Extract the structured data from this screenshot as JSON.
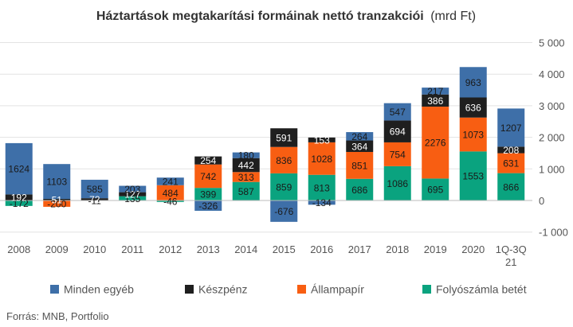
{
  "chart_data": {
    "type": "bar",
    "stacked": true,
    "title": "Háztartások megtakarítási formáinak nettó tranzakciói",
    "title_unit": "(mrd Ft)",
    "source": "Forrás: MNB, Portfolio",
    "categories": [
      "2008",
      "2009",
      "2010",
      "2011",
      "2012",
      "2013",
      "2014",
      "2015",
      "2016",
      "2017",
      "2018",
      "2019",
      "2020",
      "1Q-3Q 21"
    ],
    "ylim": [
      -1000,
      5000
    ],
    "yticks": [
      -1000,
      0,
      1000,
      2000,
      3000,
      4000,
      5000
    ],
    "ytick_labels": [
      "-1 000",
      "0",
      "1 000",
      "2 000",
      "3 000",
      "4 000",
      "5 000"
    ],
    "grid": true,
    "legend_position": "bottom",
    "series": [
      {
        "name": "Folyószámla betét",
        "color": "#0aa37f",
        "values": [
          -172,
          0,
          0,
          135,
          -46,
          399,
          587,
          859,
          813,
          686,
          1086,
          695,
          1553,
          866
        ],
        "labels": [
          "-172",
          "",
          "",
          "135",
          "-46",
          "399",
          "587",
          "859",
          "813",
          "686",
          "1086",
          "695",
          "1553",
          "866"
        ]
      },
      {
        "name": "Állampapír",
        "color": "#f85e12",
        "values": [
          0,
          -200,
          -11,
          0,
          484,
          742,
          313,
          836,
          1028,
          851,
          754,
          2276,
          1073,
          631
        ],
        "labels": [
          "",
          "-200",
          "-11",
          "",
          "484",
          "742",
          "313",
          "836",
          "1028",
          "851",
          "754",
          "2276",
          "1073",
          "631"
        ]
      },
      {
        "name": "Készpénz",
        "color": "#1f1f1f",
        "values": [
          192,
          51,
          72,
          127,
          0,
          254,
          442,
          591,
          153,
          364,
          694,
          386,
          636,
          208
        ],
        "labels": [
          "192",
          "51",
          "72",
          "127",
          "",
          "254",
          "442",
          "591",
          "153",
          "364",
          "694",
          "386",
          "636",
          "208"
        ]
      },
      {
        "name": "Minden egyéb",
        "color": "#3e6fa8",
        "values": [
          1624,
          1103,
          585,
          203,
          241,
          -326,
          180,
          -676,
          -134,
          264,
          547,
          217,
          963,
          1207
        ],
        "labels": [
          "1624",
          "1103",
          "585",
          "203",
          "241",
          "-326",
          "180",
          "-676",
          "-134",
          "264",
          "547",
          "217",
          "963",
          "1207"
        ]
      }
    ],
    "legend_order": [
      "Minden egyéb",
      "Készpénz",
      "Állampapír",
      "Folyószámla betét"
    ]
  }
}
